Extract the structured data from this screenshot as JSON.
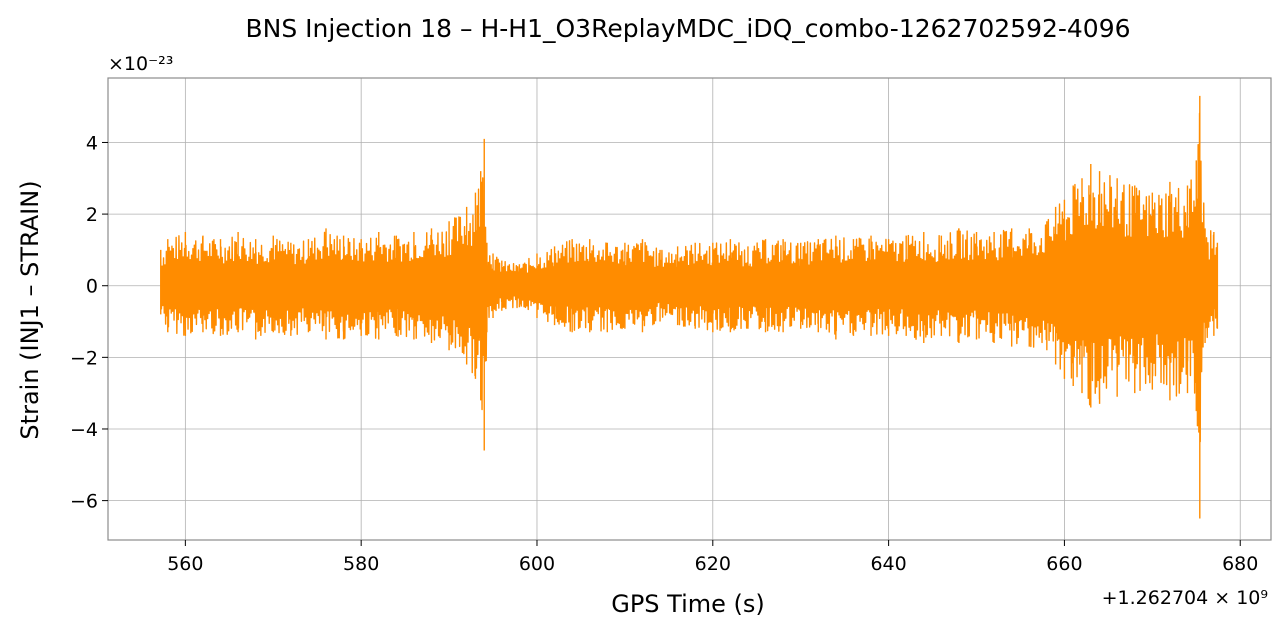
{
  "chart_data": {
    "type": "line",
    "title": "BNS Injection 18 – H-H1_O3ReplayMDC_iDQ_combo-1262702592-4096",
    "xlabel": "GPS Time (s)",
    "ylabel": "Strain (INJ1 – STRAIN)",
    "x_offset_label": "+1.262704 × 10⁹",
    "y_scale_label": "×10⁻²³",
    "xlim": [
      551.2,
      683.5
    ],
    "ylim": [
      -7.1,
      5.8
    ],
    "x_ticks": [
      "560",
      "580",
      "600",
      "620",
      "640",
      "660",
      "680"
    ],
    "y_ticks": [
      "−6",
      "−4",
      "−2",
      "0",
      "2",
      "4"
    ],
    "grid": true,
    "series": [
      {
        "color": "#ff8c00",
        "x": [
          557.2,
          558,
          560,
          562,
          564,
          566,
          568,
          570,
          572,
          574,
          576,
          578,
          580,
          582,
          584,
          586,
          588,
          590,
          592,
          593,
          593.6,
          594,
          594.3,
          595,
          596,
          598,
          600,
          602,
          604,
          606,
          608,
          610,
          612,
          614,
          616,
          618,
          620,
          622,
          624,
          626,
          628,
          630,
          632,
          634,
          636,
          638,
          640,
          642,
          644,
          646,
          648,
          650,
          652,
          654,
          656,
          658,
          659,
          660,
          661,
          662,
          663,
          664,
          666,
          668,
          670,
          672,
          674,
          675,
          675.4,
          676,
          677,
          677.4
        ],
        "upper": [
          1.0,
          1.3,
          1.5,
          1.4,
          1.3,
          1.5,
          1.3,
          1.4,
          1.2,
          1.3,
          1.6,
          1.4,
          1.3,
          1.5,
          1.4,
          1.5,
          1.6,
          1.8,
          2.2,
          2.6,
          3.2,
          4.1,
          1.2,
          0.9,
          0.7,
          0.6,
          0.9,
          1.1,
          1.3,
          1.3,
          1.2,
          1.2,
          1.3,
          1.0,
          1.1,
          1.2,
          1.2,
          1.3,
          1.1,
          1.3,
          1.3,
          1.2,
          1.3,
          1.4,
          1.3,
          1.4,
          1.3,
          1.4,
          1.5,
          1.4,
          1.6,
          1.5,
          1.5,
          1.6,
          1.6,
          1.8,
          2.2,
          2.4,
          2.8,
          3.0,
          3.4,
          3.2,
          3.0,
          2.8,
          2.6,
          2.9,
          2.8,
          3.5,
          5.3,
          1.6,
          1.5,
          1.2
        ],
        "lower": [
          -0.8,
          -1.3,
          -1.4,
          -1.3,
          -1.4,
          -1.3,
          -1.5,
          -1.3,
          -1.4,
          -1.3,
          -1.5,
          -1.5,
          -1.4,
          -1.5,
          -1.4,
          -1.5,
          -1.6,
          -1.8,
          -2.2,
          -2.6,
          -3.2,
          -4.6,
          -1.3,
          -0.9,
          -0.7,
          -0.6,
          -0.9,
          -1.1,
          -1.3,
          -1.3,
          -1.3,
          -1.2,
          -1.3,
          -1.0,
          -1.1,
          -1.2,
          -1.3,
          -1.3,
          -1.2,
          -1.3,
          -1.3,
          -1.2,
          -1.3,
          -1.5,
          -1.4,
          -1.4,
          -1.4,
          -1.4,
          -1.6,
          -1.4,
          -1.6,
          -1.5,
          -1.6,
          -1.7,
          -1.7,
          -1.8,
          -2.2,
          -2.6,
          -2.8,
          -3.0,
          -3.4,
          -3.3,
          -3.1,
          -3.0,
          -2.9,
          -3.2,
          -3.0,
          -3.5,
          -6.5,
          -1.6,
          -1.4,
          -1.2
        ]
      }
    ]
  }
}
